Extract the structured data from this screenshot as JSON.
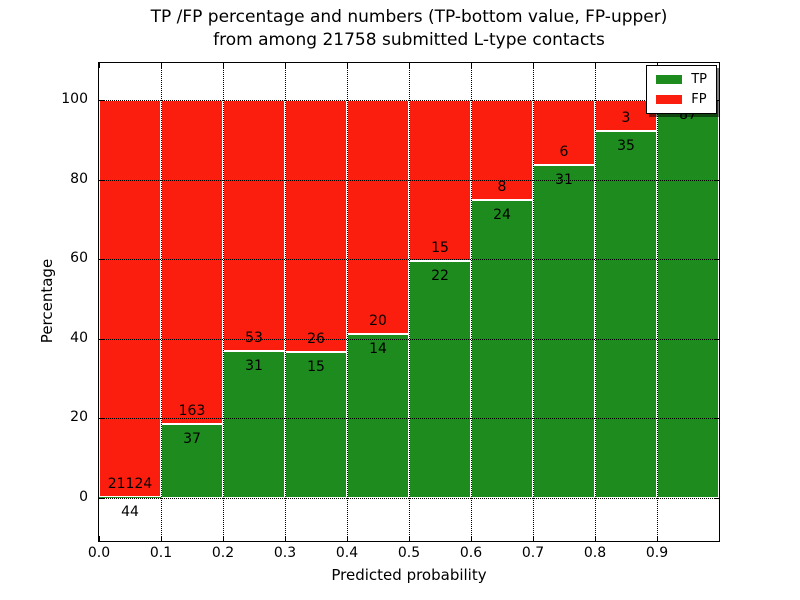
{
  "title": {
    "line1": "TP /FP percentage and numbers (TP-bottom value, FP-upper)",
    "line2": "from among 21758 submitted L-type contacts"
  },
  "axes": {
    "xlabel": "Predicted probability",
    "ylabel": "Percentage"
  },
  "legend": {
    "position": "upper right",
    "items": [
      {
        "label": "TP",
        "color": "#1e8b1e"
      },
      {
        "label": "FP",
        "color": "#fb1d0d"
      }
    ]
  },
  "chart_data": {
    "type": "bar",
    "stacked": true,
    "title": "TP /FP percentage and numbers (TP-bottom value, FP-upper) from among 21758 submitted L-type contacts",
    "xlabel": "Predicted probability",
    "ylabel": "Percentage",
    "total_contacts": 21758,
    "categories": [
      "0.0-0.1",
      "0.1-0.2",
      "0.2-0.3",
      "0.3-0.4",
      "0.4-0.5",
      "0.5-0.6",
      "0.6-0.7",
      "0.7-0.8",
      "0.8-0.9",
      "0.9-1.0"
    ],
    "bin_edges": [
      0.0,
      0.1,
      0.2,
      0.3,
      0.4,
      0.5,
      0.6,
      0.7,
      0.8,
      0.9,
      1.0
    ],
    "series": [
      {
        "name": "TP",
        "color": "#1e8b1e",
        "counts": [
          44,
          37,
          31,
          15,
          14,
          22,
          24,
          31,
          35,
          87
        ],
        "percent": [
          0.21,
          18.5,
          36.9,
          36.59,
          41.18,
          59.46,
          75.0,
          83.78,
          92.11,
          100.0
        ]
      },
      {
        "name": "FP",
        "color": "#fb1d0d",
        "counts": [
          21124,
          163,
          53,
          26,
          20,
          15,
          8,
          6,
          3,
          0
        ],
        "percent": [
          99.79,
          81.5,
          63.1,
          63.41,
          58.82,
          40.54,
          25.0,
          16.22,
          7.89,
          0.0
        ]
      }
    ],
    "xticks": [
      "0.0",
      "0.1",
      "0.2",
      "0.3",
      "0.4",
      "0.5",
      "0.6",
      "0.7",
      "0.8",
      "0.9"
    ],
    "yticks": [
      "0",
      "20",
      "40",
      "60",
      "80",
      "100"
    ],
    "xlim": [
      0.0,
      1.0
    ],
    "ylim": [
      -11.0,
      109.5
    ],
    "grid": true,
    "grid_style": "dotted",
    "legend_position": "upper right",
    "bar_edge_color": "#ffffff",
    "label_note": "TP count below segment boundary, FP count above segment boundary"
  }
}
